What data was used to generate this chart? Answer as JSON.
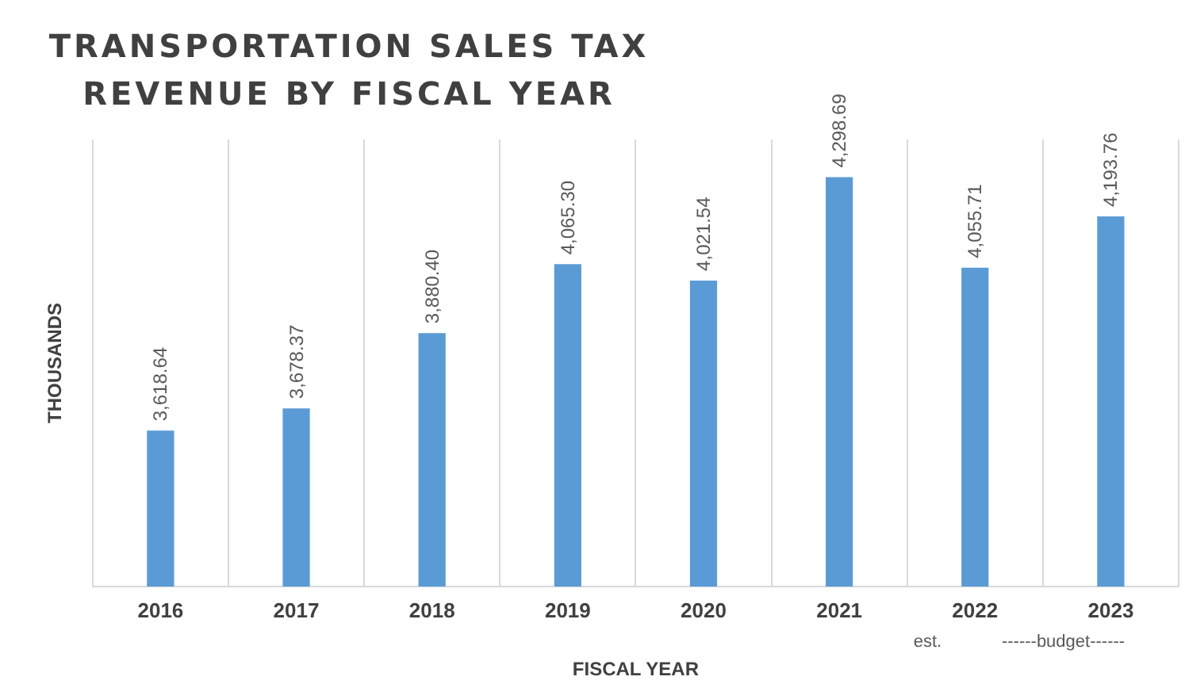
{
  "chart_data": {
    "type": "bar",
    "title": "TRANSPORTATION SALES TAX REVENUE BY FISCAL YEAR",
    "xlabel": "FISCAL YEAR",
    "ylabel": "THOUSANDS",
    "categories": [
      "2016",
      "2017",
      "2018",
      "2019",
      "2020",
      "2021",
      "2022",
      "2023"
    ],
    "values": [
      3618.64,
      3678.37,
      3880.4,
      4065.3,
      4021.54,
      4298.69,
      4055.71,
      4193.76
    ],
    "value_labels": [
      "3,618.64",
      "3,678.37",
      "3,880.40",
      "4,065.30",
      "4,021.54",
      "4,298.69",
      "4,055.71",
      "4,193.76"
    ],
    "color": "#5b9bd5",
    "ylim": [
      3200,
      4400
    ],
    "grid": "x",
    "legend": false,
    "annotations": [
      "est.",
      "------budget------"
    ]
  }
}
